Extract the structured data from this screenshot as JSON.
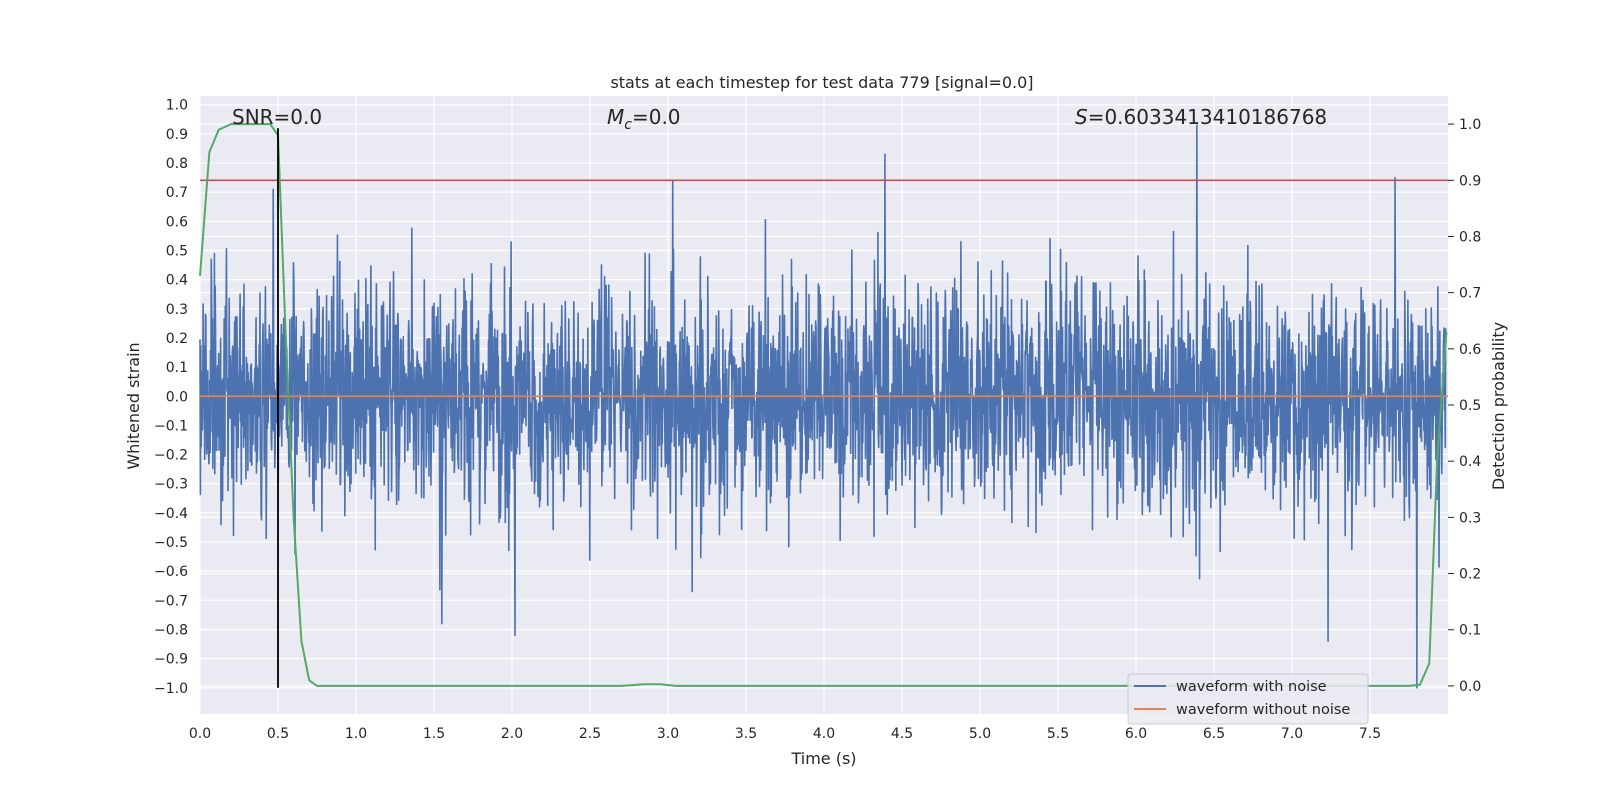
{
  "chart_data": {
    "type": "line",
    "title": "stats at each timestep for test data 779 [signal=0.0]",
    "xlabel": "Time (s)",
    "ylabel_left": "Whitened strain",
    "ylabel_right": "Detection probability",
    "xlim": [
      0.0,
      8.0
    ],
    "ylim_left": [
      -1.09,
      1.03
    ],
    "ylim_right": [
      -0.05,
      1.05
    ],
    "xticks": [
      "0.0",
      "0.5",
      "1.0",
      "1.5",
      "2.0",
      "2.5",
      "3.0",
      "3.5",
      "4.0",
      "4.5",
      "5.0",
      "5.5",
      "6.0",
      "6.5",
      "7.0",
      "7.5"
    ],
    "xtick_values": [
      0.0,
      0.5,
      1.0,
      1.5,
      2.0,
      2.5,
      3.0,
      3.5,
      4.0,
      4.5,
      5.0,
      5.5,
      6.0,
      6.5,
      7.0,
      7.5
    ],
    "yticks_left": [
      "1.0",
      "0.9",
      "0.8",
      "0.7",
      "0.6",
      "0.5",
      "0.4",
      "0.3",
      "0.2",
      "0.1",
      "0.0",
      "−0.1",
      "−0.2",
      "−0.3",
      "−0.4",
      "−0.5",
      "−0.6",
      "−0.7",
      "−0.8",
      "−0.9",
      "−1.0"
    ],
    "ytick_values_left": [
      1.0,
      0.9,
      0.8,
      0.7,
      0.6,
      0.5,
      0.4,
      0.3,
      0.2,
      0.1,
      0.0,
      -0.1,
      -0.2,
      -0.3,
      -0.4,
      -0.5,
      -0.6,
      -0.7,
      -0.8,
      -0.9,
      -1.0
    ],
    "yticks_right": [
      "1.0",
      "0.9",
      "0.8",
      "0.7",
      "0.6",
      "0.5",
      "0.4",
      "0.3",
      "0.2",
      "0.1",
      "0.0"
    ],
    "ytick_values_right": [
      1.0,
      0.9,
      0.8,
      0.7,
      0.6,
      0.5,
      0.4,
      0.3,
      0.2,
      0.1,
      0.0
    ],
    "grid": true,
    "legend_position": "lower-right",
    "annotations": {
      "snr": "SNR=0.0",
      "mc_symbol": "M",
      "mc_subscript": "c",
      "mc_value": "=0.0",
      "s_symbol": "S",
      "s_value": "=0.6033413410186768"
    },
    "series": [
      {
        "name": "waveform with noise",
        "color": "#4c72b0",
        "axis": "left",
        "peaks": [
          {
            "x": 0.47,
            "y": 0.71
          },
          {
            "x": 3.03,
            "y": 0.74
          },
          {
            "x": 4.39,
            "y": 0.83
          },
          {
            "x": 6.39,
            "y": 0.93
          },
          {
            "x": 7.66,
            "y": 0.75
          },
          {
            "x": 2.02,
            "y": -0.82
          },
          {
            "x": 1.55,
            "y": -0.78
          },
          {
            "x": 7.23,
            "y": -0.84
          },
          {
            "x": 7.8,
            "y": -1.0
          }
        ]
      },
      {
        "name": "waveform without noise",
        "color": "#dd8452",
        "axis": "left",
        "constant": 0.0
      }
    ],
    "detection_probability": {
      "color": "#55a868",
      "axis": "right",
      "x": [
        0.0,
        0.06,
        0.12,
        0.2,
        0.3,
        0.4,
        0.45,
        0.5,
        0.55,
        0.6,
        0.65,
        0.7,
        0.75,
        0.8,
        2.7,
        2.85,
        2.95,
        3.05,
        3.2,
        7.75,
        7.82,
        7.88,
        7.93,
        7.99
      ],
      "y": [
        0.73,
        0.95,
        0.99,
        1.0,
        1.0,
        1.0,
        1.0,
        0.98,
        0.62,
        0.3,
        0.08,
        0.01,
        0.0,
        0.0,
        0.0,
        0.003,
        0.003,
        0.0,
        0.0,
        0.0,
        0.002,
        0.04,
        0.4,
        0.63
      ]
    },
    "threshold": {
      "color": "#c44e52",
      "axis": "right",
      "value": 0.9
    },
    "marker_line": {
      "color": "#000000",
      "axis": "left",
      "x": 0.5,
      "y_from": -1.0,
      "y_to": 0.92
    }
  }
}
